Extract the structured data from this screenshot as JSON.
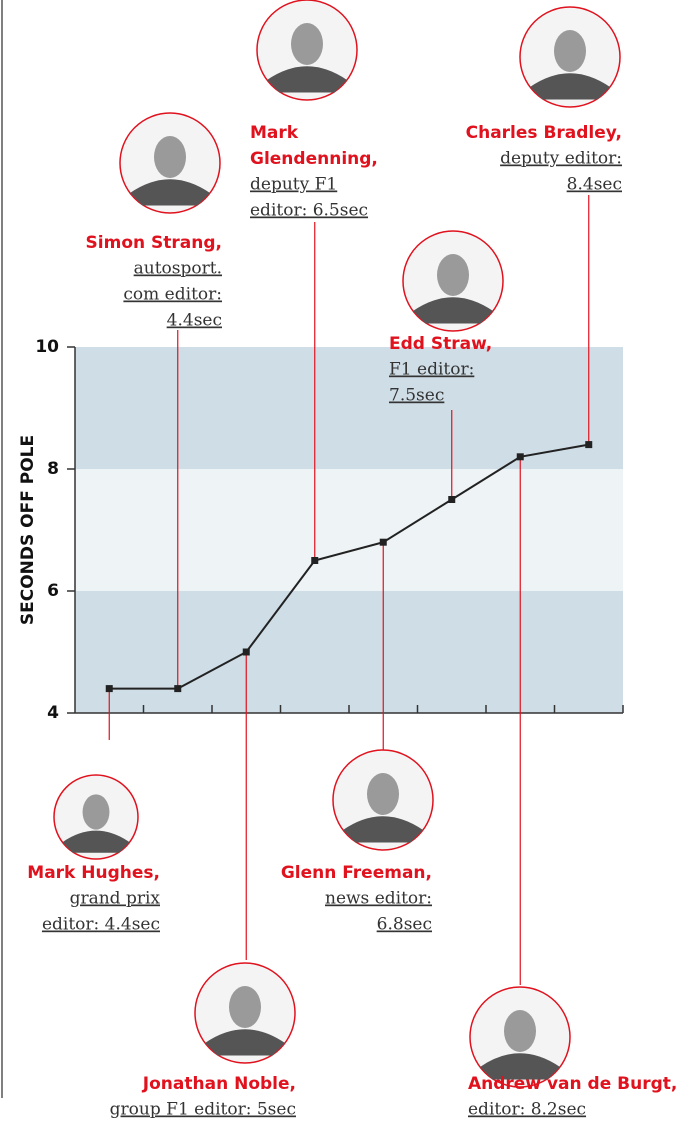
{
  "chart_data": {
    "type": "line",
    "y_label": "SECONDS OFF POLE",
    "values": [
      4.4,
      4.4,
      5,
      6.5,
      6.8,
      7.5,
      8.2,
      8.4
    ],
    "color": "#222222",
    "annotation_color": "#e0121e",
    "ylim": [
      4,
      10
    ],
    "yticks": [
      4,
      6,
      8,
      10
    ],
    "band_colors": [
      "#cfdde6",
      "#eef3f6"
    ],
    "annotations": [
      {
        "name": [
          "Mark Hughes,"
        ],
        "role": [
          "grand prix",
          "editor: 4.4sec"
        ]
      },
      {
        "name": [
          "Simon Strang,"
        ],
        "role": [
          "autosport.",
          "com editor:",
          "4.4sec"
        ]
      },
      {
        "name": [
          "Jonathan Noble,"
        ],
        "role": [
          "group F1 editor: 5sec"
        ]
      },
      {
        "name": [
          "Mark",
          "Glendenning,"
        ],
        "role": [
          "deputy F1",
          "editor: 6.5sec"
        ]
      },
      {
        "name": [
          "Glenn Freeman,"
        ],
        "role": [
          "news editor:",
          "6.8sec"
        ]
      },
      {
        "name": [
          "Edd Straw,"
        ],
        "role": [
          "F1 editor:",
          "7.5sec"
        ]
      },
      {
        "name": [
          "Andrew van de Burgt,"
        ],
        "role": [
          "editor: 8.2sec"
        ]
      },
      {
        "name": [
          "Charles Bradley,"
        ],
        "role": [
          "deputy editor:",
          "8.4sec"
        ]
      }
    ]
  }
}
